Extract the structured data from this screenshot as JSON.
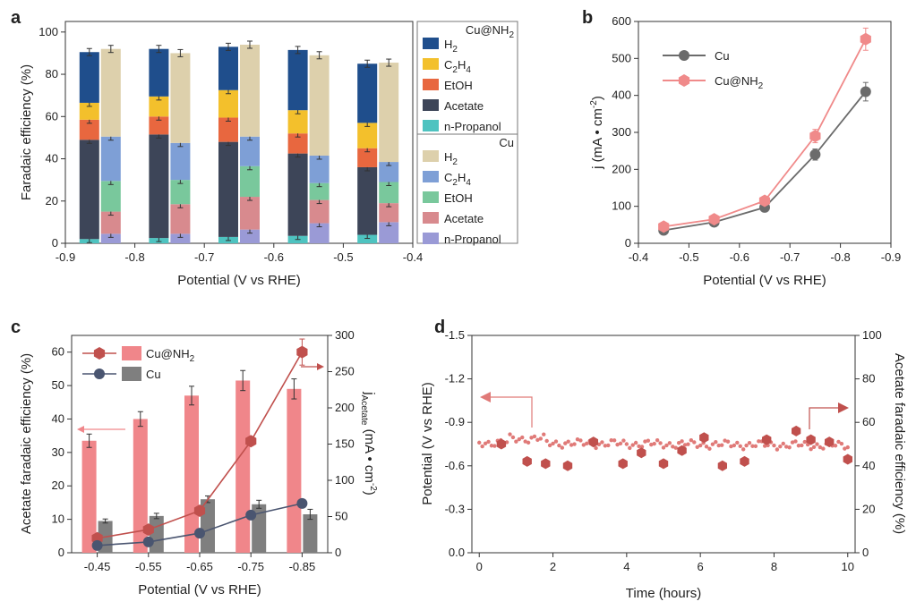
{
  "panels": {
    "a": "a",
    "b": "b",
    "c": "c",
    "d": "d"
  },
  "chart_data": [
    {
      "type": "bar",
      "panel": "a",
      "stacked": true,
      "xlabel": "Potential (V vs RHE)",
      "ylabel": "Faradaic efficiency (%)",
      "xlim": [
        -0.9,
        -0.4
      ],
      "ylim": [
        0,
        105
      ],
      "xticks": [
        "-0.9",
        "-0.8",
        "-0.7",
        "-0.6",
        "-0.5",
        "-0.4"
      ],
      "yticks": [
        "0",
        "20",
        "40",
        "60",
        "80",
        "100"
      ],
      "potentials": [
        -0.85,
        -0.75,
        -0.65,
        -0.55,
        -0.45
      ],
      "groups": [
        {
          "name": "Cu@NH2",
          "legend_title": "Cu@NH",
          "legend_title_sub": "2",
          "series": [
            {
              "name": "n-Propanol",
              "color": "#4ec3c0",
              "values": [
                2,
                2.5,
                3,
                3.5,
                4
              ]
            },
            {
              "name": "Acetate",
              "color": "#3d4558",
              "values": [
                47,
                49,
                45,
                39,
                32
              ]
            },
            {
              "name": "EtOH",
              "color": "#e8673f",
              "values": [
                9.5,
                8.5,
                11.5,
                9.5,
                9
              ]
            },
            {
              "name": "C2H4",
              "color": "#f3c02c",
              "values": [
                8,
                9.5,
                13,
                11,
                12
              ]
            },
            {
              "name": "H2",
              "color": "#1f4e8c",
              "values": [
                24,
                22.5,
                20.5,
                28.5,
                28
              ]
            }
          ],
          "totals": [
            91,
            92.5,
            93,
            91.5,
            85
          ]
        },
        {
          "name": "Cu",
          "legend_title": "Cu",
          "series": [
            {
              "name": "n-Propanol",
              "color": "#9a9ad6",
              "values": [
                4.5,
                4.5,
                6.5,
                9.5,
                10
              ]
            },
            {
              "name": "Acetate",
              "color": "#d88a8e",
              "values": [
                10.5,
                14,
                15.5,
                11,
                9
              ]
            },
            {
              "name": "EtOH",
              "color": "#79c89c",
              "values": [
                14.5,
                11.5,
                14.5,
                8,
                10
              ]
            },
            {
              "name": "C2H4",
              "color": "#7e9fd6",
              "values": [
                21,
                17.5,
                14,
                13,
                9.5
              ]
            },
            {
              "name": "H2",
              "color": "#ddd0ac",
              "values": [
                41.5,
                42.5,
                43.5,
                47.5,
                47
              ]
            }
          ],
          "totals": [
            92,
            90,
            94,
            89,
            85.5
          ]
        }
      ],
      "legend_labels": {
        "H2": {
          "main": "H",
          "sub": "2"
        },
        "C2H4": {
          "a": "C",
          "sub1": "2",
          "b": "H",
          "sub2": "4"
        },
        "EtOH": "EtOH",
        "Acetate": "Acetate",
        "n-Propanol": "n-Propanol"
      }
    },
    {
      "type": "line",
      "panel": "b",
      "xlabel": "Potential (V vs RHE)",
      "ylabel": "j (mA",
      "ylabel_tail": "cm",
      "ylabel_sup": "-2",
      "ylabel_close": ")",
      "xlim": [
        -0.4,
        -0.9
      ],
      "ylim": [
        0,
        600
      ],
      "xticks": [
        "-0.4",
        "-0.5",
        "-0.6",
        "-0.7",
        "-0.8",
        "-0.9"
      ],
      "yticks": [
        "0",
        "100",
        "200",
        "300",
        "400",
        "500",
        "600"
      ],
      "x": [
        -0.45,
        -0.55,
        -0.65,
        -0.75,
        -0.85
      ],
      "series": [
        {
          "name": "Cu",
          "color": "#6b6b6b",
          "marker": "circle",
          "values": [
            35,
            57,
            97,
            240,
            410
          ],
          "err": [
            8,
            8,
            10,
            15,
            25
          ]
        },
        {
          "name": "Cu@NH2",
          "legend_main": "Cu@NH",
          "legend_sub": "2",
          "color": "#f08a8a",
          "marker": "hexagon",
          "values": [
            45,
            65,
            115,
            290,
            552
          ],
          "err": [
            8,
            8,
            10,
            18,
            30
          ]
        }
      ]
    },
    {
      "type": "bar",
      "panel": "c",
      "xlabel": "Potential (V vs RHE)",
      "ylabel_left": "Acetate faradaic efficiency (%)",
      "ylabel_right_j": "j",
      "ylabel_right_sub": "Acetate",
      "ylabel_right_unit": "(mA",
      "ylabel_right_cm": "cm",
      "ylabel_right_sup": "-2",
      "ylabel_right_close": ")",
      "categories": [
        "-0.45",
        "-0.55",
        "-0.65",
        "-0.75",
        "-0.85"
      ],
      "ylim_left": [
        0,
        65
      ],
      "ylim_right": [
        0,
        300
      ],
      "yticks_left": [
        "0",
        "10",
        "20",
        "30",
        "40",
        "50",
        "60"
      ],
      "yticks_right": [
        "0",
        "50",
        "100",
        "150",
        "200",
        "250",
        "300"
      ],
      "bars": [
        {
          "name": "Cu@NH2",
          "legend_main": "Cu@NH",
          "legend_sub": "2",
          "color": "#f0868a",
          "values": [
            33.5,
            40,
            47,
            51.5,
            49
          ],
          "err": [
            2,
            2.2,
            2.8,
            3,
            3
          ]
        },
        {
          "name": "Cu",
          "color": "#7f7f7f",
          "values": [
            9.5,
            11,
            16,
            14.5,
            11.5
          ],
          "err": [
            0.6,
            0.8,
            1,
            1.2,
            1.5
          ]
        }
      ],
      "lines": [
        {
          "name": "Cu@NH2",
          "axis": "right",
          "color": "#c0504d",
          "marker": "hexagon",
          "values": [
            20,
            32,
            58,
            154,
            277
          ],
          "err": [
            3,
            3,
            4,
            6,
            18
          ]
        },
        {
          "name": "Cu",
          "axis": "right",
          "color": "#4a5570",
          "marker": "circle",
          "values": [
            10,
            15,
            27,
            52,
            68
          ],
          "err": [
            2,
            2,
            2,
            3,
            4
          ]
        }
      ]
    },
    {
      "type": "scatter",
      "panel": "d",
      "xlabel": "Time (hours)",
      "ylabel_left": "Potential (V vs RHE)",
      "ylabel_right": "Acetate faradaic efficiency (%)",
      "xlim": [
        -0.2,
        10.2
      ],
      "ylim_left": [
        0,
        -1.5
      ],
      "ylim_right": [
        0,
        100
      ],
      "xticks": [
        "0",
        "2",
        "4",
        "6",
        "8",
        "10"
      ],
      "yticks_left": [
        "0.0",
        "-0.3",
        "-0.6",
        "-0.9",
        "-1.2",
        "-1.5"
      ],
      "yticks_right": [
        "0",
        "20",
        "40",
        "60",
        "80",
        "100"
      ],
      "potential_trace": {
        "color": "#e07a78",
        "mean": -0.78,
        "start": -0.76,
        "end": -0.74
      },
      "fe_points": {
        "color": "#c0504d",
        "x": [
          0.6,
          1.3,
          1.8,
          2.4,
          3.1,
          3.9,
          4.4,
          5.0,
          5.5,
          6.1,
          6.6,
          7.2,
          7.8,
          8.6,
          9.0,
          9.5,
          10.0
        ],
        "y": [
          50,
          42,
          41,
          40,
          51,
          41,
          46,
          41,
          47,
          53,
          40,
          42,
          52,
          56,
          52,
          51,
          43
        ]
      }
    }
  ]
}
